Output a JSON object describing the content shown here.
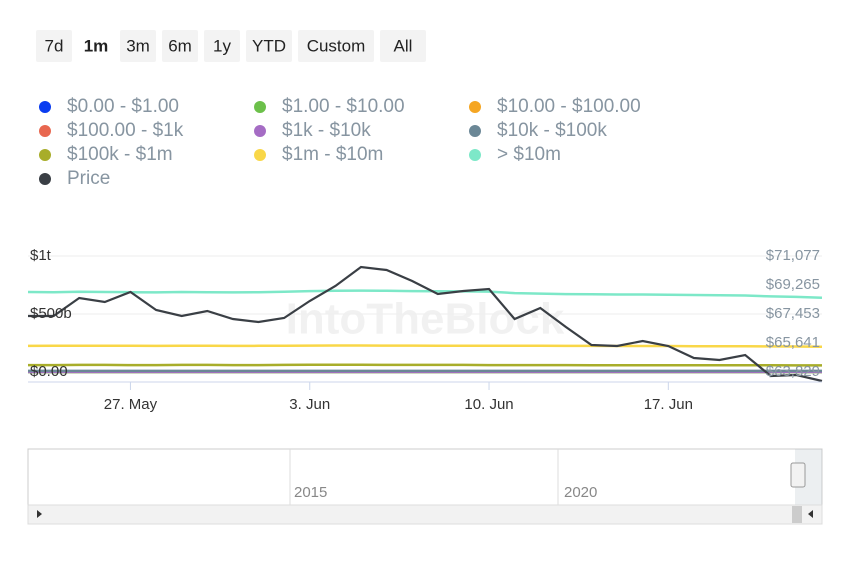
{
  "range_buttons": [
    "7d",
    "1m",
    "3m",
    "6m",
    "1y",
    "YTD",
    "Custom",
    "All"
  ],
  "selected_index": 1,
  "chart_data": {
    "type": "line",
    "watermark": "IntoTheBlock",
    "categories": [
      null,
      null,
      null,
      null,
      "27. May",
      null,
      null,
      null,
      null,
      null,
      null,
      "3. Jun",
      null,
      null,
      null,
      null,
      null,
      null,
      "10. Jun",
      null,
      null,
      null,
      null,
      null,
      null,
      "17. Jun",
      null,
      null,
      null,
      null,
      null,
      null
    ],
    "ylim": [
      -86000000000,
      1095000000000
    ],
    "yticks": [
      {
        "value": 0,
        "label": "$0.00"
      },
      {
        "value": 500000000000,
        "label": "$500b"
      },
      {
        "value": 1000000000000,
        "label": "$1t"
      }
    ],
    "y2lim": [
      63204,
      71764
    ],
    "y2ticks": [
      {
        "value": 63829,
        "label": "$63,829"
      },
      {
        "value": 65641,
        "label": "$65,641"
      },
      {
        "value": 67453,
        "label": "$67,453"
      },
      {
        "value": 69265,
        "label": "$69,265"
      },
      {
        "value": 71077,
        "label": "$71,077"
      }
    ],
    "grid": true,
    "series": [
      {
        "name": "$0.00 - $1.00",
        "color": "#0a3cf0",
        "values": [
          100000000.0,
          100000000.0,
          100000000.0,
          100000000.0,
          100000000.0,
          100000000.0,
          100000000.0,
          100000000.0,
          100000000.0,
          100000000.0,
          100000000.0,
          100000000.0,
          100000000.0,
          100000000.0,
          100000000.0,
          100000000.0,
          100000000.0,
          100000000.0,
          100000000.0,
          100000000.0,
          100000000.0,
          100000000.0,
          100000000.0,
          100000000.0,
          100000000.0,
          100000000.0,
          100000000.0,
          100000000.0,
          100000000.0,
          100000000.0,
          100000000.0,
          100000000.0
        ]
      },
      {
        "name": "$1.00 - $10.00",
        "color": "#6cc04a",
        "values": [
          300000000.0,
          300000000.0,
          300000000.0,
          300000000.0,
          300000000.0,
          300000000.0,
          300000000.0,
          300000000.0,
          300000000.0,
          300000000.0,
          300000000.0,
          300000000.0,
          300000000.0,
          300000000.0,
          300000000.0,
          300000000.0,
          300000000.0,
          300000000.0,
          300000000.0,
          300000000.0,
          300000000.0,
          300000000.0,
          300000000.0,
          300000000.0,
          300000000.0,
          300000000.0,
          300000000.0,
          300000000.0,
          300000000.0,
          300000000.0,
          300000000.0,
          300000000.0
        ]
      },
      {
        "name": "$10.00 - $100.00",
        "color": "#f5a623",
        "values": [
          1000000000.0,
          1000000000.0,
          1000000000.0,
          1000000000.0,
          1000000000.0,
          1000000000.0,
          1000000000.0,
          1000000000.0,
          1000000000.0,
          1000000000.0,
          1000000000.0,
          1000000000.0,
          1000000000.0,
          1000000000.0,
          1000000000.0,
          1000000000.0,
          1000000000.0,
          1000000000.0,
          1000000000.0,
          1000000000.0,
          1000000000.0,
          1000000000.0,
          1000000000.0,
          1000000000.0,
          1000000000.0,
          1000000000.0,
          1000000000.0,
          1000000000.0,
          1000000000.0,
          1000000000.0,
          1000000000.0,
          1000000000.0
        ]
      },
      {
        "name": "$100.00 - $1k",
        "color": "#e8674f",
        "values": [
          2000000000.0,
          2000000000.0,
          2000000000.0,
          2000000000.0,
          2000000000.0,
          2000000000.0,
          2000000000.0,
          2000000000.0,
          2000000000.0,
          2000000000.0,
          2000000000.0,
          2000000000.0,
          2000000000.0,
          2000000000.0,
          2000000000.0,
          2000000000.0,
          2000000000.0,
          2000000000.0,
          2000000000.0,
          2000000000.0,
          2000000000.0,
          2000000000.0,
          2000000000.0,
          2000000000.0,
          2000000000.0,
          2000000000.0,
          2000000000.0,
          2000000000.0,
          2000000000.0,
          2000000000.0,
          2000000000.0,
          2000000000.0
        ]
      },
      {
        "name": "$1k - $10k",
        "color": "#a56cc4",
        "values": [
          3000000000.0,
          3000000000.0,
          3000000000.0,
          3000000000.0,
          3000000000.0,
          3000000000.0,
          3000000000.0,
          3000000000.0,
          3000000000.0,
          3000000000.0,
          3000000000.0,
          3000000000.0,
          3000000000.0,
          3000000000.0,
          3000000000.0,
          3000000000.0,
          3000000000.0,
          3000000000.0,
          3000000000.0,
          3000000000.0,
          3000000000.0,
          3000000000.0,
          3000000000.0,
          3000000000.0,
          3000000000.0,
          3000000000.0,
          3000000000.0,
          3000000000.0,
          3000000000.0,
          3000000000.0,
          3000000000.0,
          3000000000.0
        ]
      },
      {
        "name": "$10k - $100k",
        "color": "#6b8796",
        "values": [
          10000000000.0,
          10000000000.0,
          10000000000.0,
          10000000000.0,
          10000000000.0,
          10000000000.0,
          10000000000.0,
          10000000000.0,
          10000000000.0,
          10000000000.0,
          10000000000.0,
          10000000000.0,
          10000000000.0,
          10000000000.0,
          10000000000.0,
          10000000000.0,
          10000000000.0,
          10000000000.0,
          10000000000.0,
          10000000000.0,
          10000000000.0,
          10000000000.0,
          10000000000.0,
          10000000000.0,
          10000000000.0,
          10000000000.0,
          10000000000.0,
          10000000000.0,
          10000000000.0,
          10000000000.0,
          10000000000.0,
          10000000000.0
        ]
      },
      {
        "name": "$100k - $1m",
        "color": "#a8ad2a",
        "values": [
          60000000000.0,
          60000000000.0,
          61000000000.0,
          61000000000.0,
          60000000000.0,
          60000000000.0,
          61000000000.0,
          61000000000.0,
          60000000000.0,
          60000000000.0,
          61000000000.0,
          62000000000.0,
          62000000000.0,
          62000000000.0,
          61000000000.0,
          61000000000.0,
          61000000000.0,
          61000000000.0,
          60000000000.0,
          60000000000.0,
          60000000000.0,
          60000000000.0,
          59000000000.0,
          59000000000.0,
          59000000000.0,
          59000000000.0,
          58000000000.0,
          58000000000.0,
          58000000000.0,
          58000000000.0,
          57000000000.0,
          57000000000.0
        ]
      },
      {
        "name": "$1m - $10m",
        "color": "#f9d748",
        "values": [
          225000000000.0,
          226000000000.0,
          226000000000.0,
          227000000000.0,
          226000000000.0,
          225000000000.0,
          226000000000.0,
          226000000000.0,
          225000000000.0,
          226000000000.0,
          227000000000.0,
          228000000000.0,
          229000000000.0,
          229000000000.0,
          228000000000.0,
          228000000000.0,
          227000000000.0,
          227000000000.0,
          227000000000.0,
          226000000000.0,
          226000000000.0,
          225000000000.0,
          225000000000.0,
          224000000000.0,
          224000000000.0,
          224000000000.0,
          223000000000.0,
          222000000000.0,
          222000000000.0,
          221000000000.0,
          220000000000.0,
          218000000000.0
        ]
      },
      {
        "name": "> $10m",
        "color": "#7de8c8",
        "values": [
          690000000000.0,
          688000000000.0,
          692000000000.0,
          690000000000.0,
          688000000000.0,
          686000000000.0,
          690000000000.0,
          688000000000.0,
          686000000000.0,
          688000000000.0,
          692000000000.0,
          698000000000.0,
          700000000000.0,
          702000000000.0,
          700000000000.0,
          698000000000.0,
          696000000000.0,
          695000000000.0,
          693000000000.0,
          680000000000.0,
          676000000000.0,
          672000000000.0,
          670000000000.0,
          668000000000.0,
          668000000000.0,
          666000000000.0,
          664000000000.0,
          662000000000.0,
          660000000000.0,
          652000000000.0,
          648000000000.0,
          640000000000.0
        ]
      },
      {
        "name": "Price",
        "color": "#3a3f45",
        "axis": "y2",
        "values": [
          67328,
          67328,
          68453,
          68203,
          68828,
          67703,
          67328,
          67641,
          67141,
          66953,
          67203,
          68265,
          69203,
          70390,
          70202,
          69515,
          68703,
          68890,
          69015,
          67141,
          67828,
          66641,
          65516,
          65454,
          65766,
          65454,
          64704,
          64579,
          64891,
          63579,
          63642,
          63267
        ]
      }
    ],
    "navigator": {
      "labels": [
        "2015",
        "2020"
      ]
    }
  }
}
